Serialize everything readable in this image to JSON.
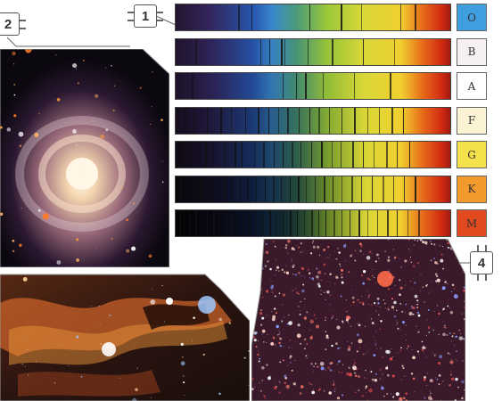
{
  "callouts": {
    "c1": "1",
    "c2": "2",
    "c4": "4"
  },
  "spectral_classes": [
    {
      "label": "O",
      "color": "#3f9fde"
    },
    {
      "label": "B",
      "color": "#f6f0f2"
    },
    {
      "label": "A",
      "color": "#ffffff"
    },
    {
      "label": "F",
      "color": "#fbf3d2"
    },
    {
      "label": "G",
      "color": "#f5e14b"
    },
    {
      "label": "K",
      "color": "#f29a2b"
    },
    {
      "label": "M",
      "color": "#e14a1f"
    }
  ],
  "colors": {
    "spiral_core": "#fff3da",
    "nebula_dust": "#c8612a",
    "star_field_bg": "#3a1a2a"
  }
}
